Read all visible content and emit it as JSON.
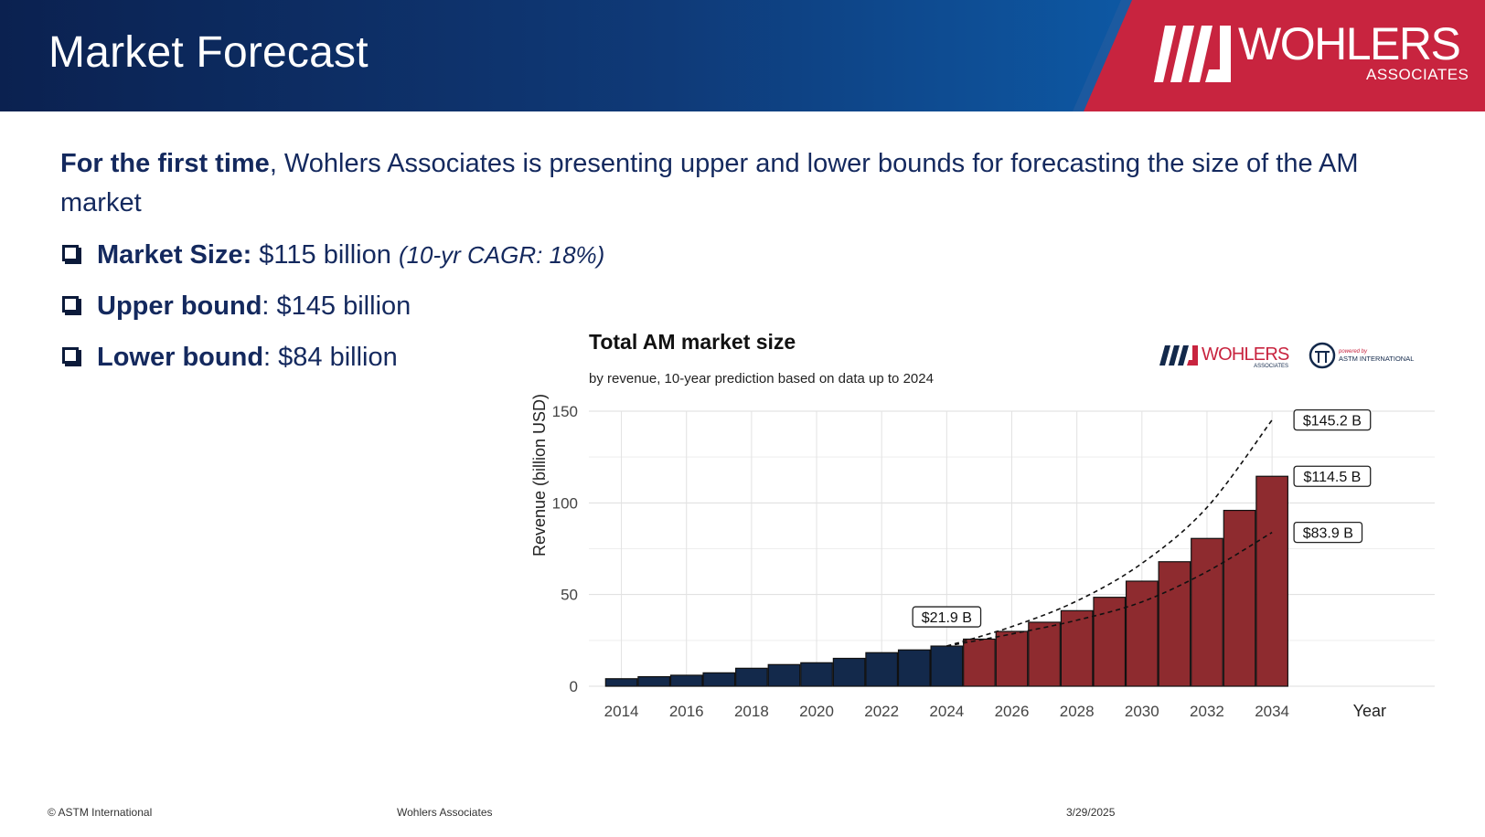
{
  "slide": {
    "title": "Market Forecast",
    "logo": {
      "word": "WOHLERS",
      "sub": "ASSOCIATES"
    },
    "intro_bold": "For the first time",
    "intro_rest": ", Wohlers Associates is presenting upper and lower bounds for forecasting the size of the AM market",
    "bullets": [
      {
        "label": "Market Size:",
        "value": " $115 billion ",
        "note": "(10-yr CAGR: 18%)"
      },
      {
        "label": "Upper bound",
        "value": ": $145 billion",
        "note": ""
      },
      {
        "label": "Lower bound",
        "value": ": $84 billion",
        "note": ""
      }
    ],
    "footer": {
      "left": "© ASTM International",
      "center": "Wohlers Associates",
      "right": "3/29/2025"
    },
    "colors": {
      "navy": "#14295e",
      "bar_actual": "#13294b",
      "bar_forecast": "#8e2b2f",
      "accent_red": "#c8243f"
    }
  },
  "chart_data": {
    "type": "bar",
    "title": "Total AM market size",
    "subtitle": "by revenue, 10-year prediction based on data up to 2024",
    "xlabel": "Year",
    "ylabel": "Revenue (billion USD)",
    "ylim": [
      0,
      150
    ],
    "yticks": [
      0,
      50,
      100,
      150
    ],
    "xlim": [
      2013,
      2039
    ],
    "xticks": [
      2014,
      2016,
      2018,
      2020,
      2022,
      2024,
      2026,
      2028,
      2030,
      2032,
      2034
    ],
    "grid": true,
    "logos": {
      "brand": "WOHLERS",
      "brand_sub": "ASSOCIATES",
      "partner_top": "powered by",
      "partner": "ASTM INTERNATIONAL"
    },
    "categories": [
      2014,
      2015,
      2016,
      2017,
      2018,
      2019,
      2020,
      2021,
      2022,
      2023,
      2024,
      2025,
      2026,
      2027,
      2028,
      2029,
      2030,
      2031,
      2032,
      2033,
      2034
    ],
    "values": [
      4.1,
      5.2,
      6.0,
      7.3,
      9.8,
      11.8,
      12.8,
      15.2,
      18.3,
      19.8,
      21.9,
      25.7,
      29.9,
      34.9,
      41.2,
      48.5,
      57.3,
      67.9,
      80.6,
      95.9,
      114.5
    ],
    "forecast_from": 2025,
    "bounds": [
      {
        "name": "upper",
        "x": [
          2024,
          2026,
          2028,
          2030,
          2032,
          2034
        ],
        "y": [
          21.9,
          32.5,
          46.5,
          67.0,
          97.5,
          145.2
        ]
      },
      {
        "name": "lower",
        "x": [
          2024,
          2026,
          2028,
          2030,
          2032,
          2034
        ],
        "y": [
          21.9,
          28.5,
          36.0,
          46.0,
          62.5,
          83.9
        ]
      }
    ],
    "annotations": [
      {
        "x": 2024,
        "y": 21.9,
        "text": "$21.9 B"
      },
      {
        "x": 2034,
        "y": 145.2,
        "text": "$145.2 B"
      },
      {
        "x": 2034,
        "y": 114.5,
        "text": "$114.5 B"
      },
      {
        "x": 2034,
        "y": 83.9,
        "text": "$83.9 B"
      }
    ]
  }
}
